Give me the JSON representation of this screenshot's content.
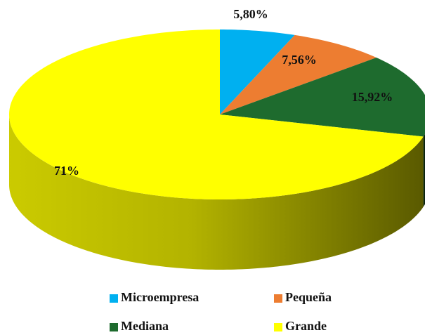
{
  "chart_data": {
    "type": "pie",
    "categories": [
      "Microempresa",
      "Pequeña",
      "Mediana",
      "Grande"
    ],
    "values": [
      5.8,
      7.56,
      15.92,
      71
    ],
    "value_labels": [
      "5,80%",
      "7,56%",
      "15,92%",
      "71%"
    ],
    "colors": [
      "#00b0f0",
      "#ed7d31",
      "#1e6b2e",
      "#ffff00"
    ],
    "legend": "bottom"
  }
}
